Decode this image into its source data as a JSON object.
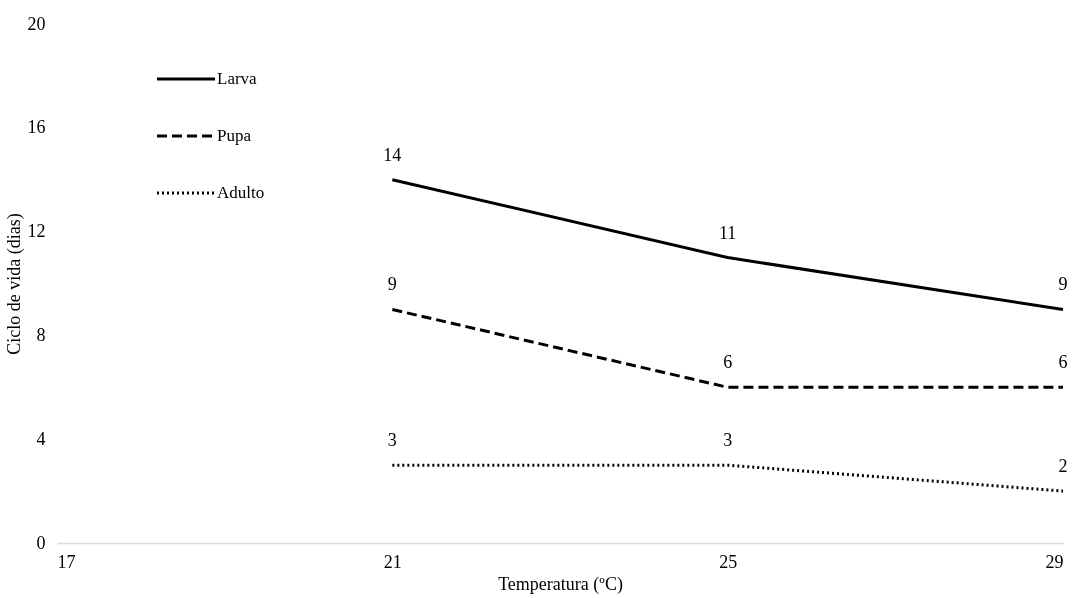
{
  "chart_data": {
    "type": "line",
    "xlabel": "Temperatura (ºC)",
    "ylabel": "Ciclo de vida (dias)",
    "x": [
      21,
      25,
      29
    ],
    "xlim": [
      17,
      29
    ],
    "xticks": [
      17,
      21,
      25,
      29
    ],
    "ylim": [
      0,
      20
    ],
    "yticks": [
      0,
      4,
      8,
      12,
      16,
      20
    ],
    "series": [
      {
        "name": "Larva",
        "color": "#000000",
        "line_style": "solid",
        "values": [
          14,
          11,
          9
        ]
      },
      {
        "name": "Pupa",
        "color": "#000000",
        "line_style": "dashed",
        "values": [
          9,
          6,
          6
        ]
      },
      {
        "name": "Adulto",
        "color": "#000000",
        "line_style": "dotted",
        "values": [
          3,
          3,
          2
        ]
      }
    ],
    "data_labels": true,
    "grid": false,
    "legend": "top left",
    "marker": "none"
  }
}
